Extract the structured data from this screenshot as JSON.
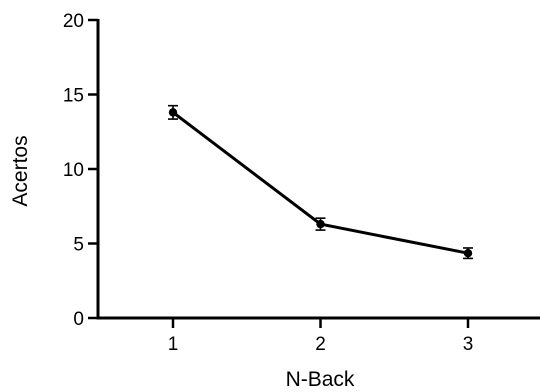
{
  "chart_data": {
    "type": "line",
    "title": "",
    "xlabel": "N-Back",
    "ylabel": "Acertos",
    "x": [
      1,
      2,
      3
    ],
    "xticks": [
      "1",
      "2",
      "3"
    ],
    "yticks": [
      "0",
      "5",
      "10",
      "15",
      "20"
    ],
    "ylim": [
      0,
      20
    ],
    "grid": false,
    "legend": "none",
    "series": [
      {
        "values": [
          13.8,
          6.3,
          4.35
        ],
        "error": [
          0.45,
          0.4,
          0.35
        ],
        "color": "#000000"
      }
    ]
  }
}
